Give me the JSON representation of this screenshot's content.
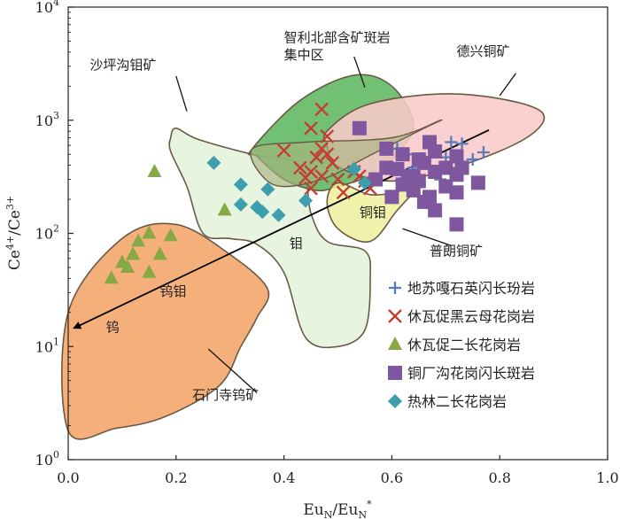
{
  "chart_data": {
    "type": "scatter",
    "title": "",
    "xlabel": {
      "main": "Eu",
      "sub1": "N",
      "mid": "/Eu",
      "sub2": "N",
      "sup": "*"
    },
    "ylabel": {
      "main": "Ce",
      "sup1": "4+",
      "mid": "/Ce",
      "sup2": "3+"
    },
    "xlim": [
      0,
      1
    ],
    "ylim": [
      1,
      10000
    ],
    "yscale": "log",
    "x_ticks": [
      "0.0",
      "0.2",
      "0.4",
      "0.6",
      "0.8",
      "1.0"
    ],
    "y_ticks": [
      {
        "base": "10",
        "exp": "0"
      },
      {
        "base": "10",
        "exp": "1"
      },
      {
        "base": "10",
        "exp": "2"
      },
      {
        "base": "10",
        "exp": "3"
      },
      {
        "base": "10",
        "exp": "4"
      }
    ],
    "regions": [
      {
        "name": "石门寺钨矿",
        "color": "#f4a468",
        "points": [
          [
            0.0,
            1.8
          ],
          [
            0.0,
            20
          ],
          [
            0.1,
            90
          ],
          [
            0.2,
            120
          ],
          [
            0.3,
            65
          ],
          [
            0.37,
            32
          ],
          [
            0.35,
            18
          ],
          [
            0.32,
            10
          ],
          [
            0.28,
            4.5
          ],
          [
            0.18,
            2.4
          ],
          [
            0.09,
            1.9
          ]
        ]
      },
      {
        "name": "沙坪沟钼矿",
        "color": "#e4f2dc",
        "points": [
          [
            0.19,
            700
          ],
          [
            0.2,
            850
          ],
          [
            0.24,
            680
          ],
          [
            0.34,
            500
          ],
          [
            0.43,
            400
          ],
          [
            0.45,
            150
          ],
          [
            0.48,
            85
          ],
          [
            0.55,
            70
          ],
          [
            0.56,
            40
          ],
          [
            0.55,
            14
          ],
          [
            0.5,
            10
          ],
          [
            0.44,
            12
          ],
          [
            0.4,
            45
          ],
          [
            0.35,
            80
          ],
          [
            0.3,
            90
          ],
          [
            0.25,
            100
          ],
          [
            0.22,
            260
          ],
          [
            0.19,
            530
          ]
        ]
      },
      {
        "name": "智利北部含矿斑岩集中区",
        "color": "#5fb760",
        "points": [
          [
            0.34,
            550
          ],
          [
            0.43,
            1500
          ],
          [
            0.53,
            2500
          ],
          [
            0.6,
            2000
          ],
          [
            0.64,
            900
          ],
          [
            0.6,
            450
          ],
          [
            0.55,
            310
          ],
          [
            0.5,
            260
          ],
          [
            0.46,
            240
          ],
          [
            0.4,
            300
          ],
          [
            0.35,
            480
          ]
        ]
      },
      {
        "name": "德兴铜矿",
        "color": "#f9c9c9",
        "points": [
          [
            0.48,
            800
          ],
          [
            0.55,
            1350
          ],
          [
            0.68,
            1700
          ],
          [
            0.8,
            1550
          ],
          [
            0.88,
            1150
          ],
          [
            0.85,
            700
          ],
          [
            0.73,
            400
          ],
          [
            0.6,
            290
          ],
          [
            0.5,
            390
          ],
          [
            0.48,
            600
          ]
        ]
      },
      {
        "name": "普朗铜矿",
        "color": "#eef0a0",
        "points": [
          [
            0.5,
            280
          ],
          [
            0.56,
            220
          ],
          [
            0.62,
            240
          ],
          [
            0.66,
            300
          ],
          [
            0.61,
            160
          ],
          [
            0.56,
            85
          ],
          [
            0.5,
            110
          ],
          [
            0.48,
            190
          ]
        ]
      }
    ],
    "region_outline_color": "#6a5a45",
    "overlap_region": {
      "color": "#a8b480",
      "points": [
        [
          0.34,
          550
        ],
        [
          0.44,
          640
        ],
        [
          0.6,
          700
        ],
        [
          0.69,
          1000
        ],
        [
          0.66,
          850
        ],
        [
          0.56,
          490
        ],
        [
          0.47,
          300
        ],
        [
          0.38,
          270
        ]
      ]
    },
    "annotations": [
      {
        "text": "智利北部含矿斑岩",
        "x": 0.4,
        "y": 4900,
        "leader": [
          [
            0.53,
            3650
          ],
          [
            0.55,
            1950
          ]
        ]
      },
      {
        "text": "集中区",
        "x": 0.4,
        "y": 3450
      },
      {
        "text": "德兴铜矿",
        "x": 0.72,
        "y": 3700,
        "leader": [
          [
            0.83,
            2600
          ],
          [
            0.8,
            1650
          ]
        ]
      },
      {
        "text": "沙坪沟钼矿",
        "x": 0.04,
        "y": 2800,
        "leader": [
          [
            0.2,
            2450
          ],
          [
            0.22,
            1200
          ]
        ]
      },
      {
        "text": "钼",
        "x": 0.41,
        "y": 74
      },
      {
        "text": "铜钼",
        "x": 0.54,
        "y": 140
      },
      {
        "text": "普朗铜矿",
        "x": 0.67,
        "y": 64,
        "leader": [
          [
            0.71,
            78
          ],
          [
            0.62,
            110
          ]
        ]
      },
      {
        "text": "钨钼",
        "x": 0.17,
        "y": 28
      },
      {
        "text": "钨",
        "x": 0.07,
        "y": 13.5
      },
      {
        "text": "石门寺钨矿",
        "x": 0.23,
        "y": 3.4,
        "leader": [
          [
            0.35,
            3.9
          ],
          [
            0.26,
            9.5
          ]
        ]
      }
    ],
    "trend_arrow": {
      "from": [
        0.78,
        820
      ],
      "to": [
        0.01,
        14.5
      ],
      "color": "#000000"
    },
    "series": [
      {
        "name": "地苏嘎石英闪长玢岩",
        "marker": "plus",
        "color": "#5a7bb3",
        "points": [
          [
            0.61,
            560
          ],
          [
            0.63,
            500
          ],
          [
            0.66,
            430
          ],
          [
            0.7,
            470
          ],
          [
            0.71,
            640
          ],
          [
            0.73,
            620
          ],
          [
            0.75,
            450
          ],
          [
            0.77,
            520
          ],
          [
            0.69,
            300
          ],
          [
            0.64,
            380
          ]
        ]
      },
      {
        "name": "休瓦促黑云母花岗岩",
        "marker": "cross",
        "color": "#c53b32",
        "points": [
          [
            0.4,
            540
          ],
          [
            0.47,
            1250
          ],
          [
            0.45,
            850
          ],
          [
            0.48,
            720
          ],
          [
            0.47,
            560
          ],
          [
            0.48,
            500
          ],
          [
            0.46,
            470
          ],
          [
            0.49,
            420
          ],
          [
            0.43,
            380
          ],
          [
            0.45,
            350
          ],
          [
            0.44,
            310
          ],
          [
            0.47,
            320
          ],
          [
            0.5,
            300
          ],
          [
            0.45,
            250
          ],
          [
            0.53,
            350
          ],
          [
            0.54,
            320
          ],
          [
            0.55,
            290
          ],
          [
            0.51,
            230
          ],
          [
            0.56,
            250
          ]
        ]
      },
      {
        "name": "休瓦促二长花岗岩",
        "marker": "triangle",
        "color": "#86a845",
        "points": [
          [
            0.16,
            350
          ],
          [
            0.29,
            160
          ],
          [
            0.15,
            100
          ],
          [
            0.19,
            95
          ],
          [
            0.13,
            85
          ],
          [
            0.12,
            65
          ],
          [
            0.17,
            65
          ],
          [
            0.1,
            55
          ],
          [
            0.11,
            50
          ],
          [
            0.15,
            45
          ],
          [
            0.08,
            40
          ]
        ]
      },
      {
        "name": "铜厂沟花岗闪长斑岩",
        "marker": "square",
        "color": "#7e579f",
        "points": [
          [
            0.54,
            850
          ],
          [
            0.59,
            560
          ],
          [
            0.67,
            640
          ],
          [
            0.62,
            500
          ],
          [
            0.65,
            450
          ],
          [
            0.68,
            530
          ],
          [
            0.66,
            420
          ],
          [
            0.72,
            480
          ],
          [
            0.59,
            380
          ],
          [
            0.61,
            370
          ],
          [
            0.63,
            320
          ],
          [
            0.57,
            300
          ],
          [
            0.62,
            270
          ],
          [
            0.65,
            290
          ],
          [
            0.68,
            350
          ],
          [
            0.7,
            380
          ],
          [
            0.72,
            330
          ],
          [
            0.73,
            380
          ],
          [
            0.64,
            240
          ],
          [
            0.67,
            210
          ],
          [
            0.7,
            260
          ],
          [
            0.72,
            230
          ],
          [
            0.6,
            210
          ],
          [
            0.66,
            190
          ],
          [
            0.76,
            280
          ],
          [
            0.68,
            160
          ],
          [
            0.72,
            120
          ],
          [
            0.64,
            320
          ]
        ]
      },
      {
        "name": "热林二长花岗岩",
        "marker": "diamond",
        "color": "#3d9fae",
        "points": [
          [
            0.27,
            420
          ],
          [
            0.32,
            270
          ],
          [
            0.37,
            245
          ],
          [
            0.32,
            180
          ],
          [
            0.35,
            170
          ],
          [
            0.36,
            155
          ],
          [
            0.39,
            145
          ],
          [
            0.44,
            195
          ],
          [
            0.53,
            370
          ],
          [
            0.55,
            280
          ]
        ]
      }
    ],
    "legend_position": "lower-right"
  }
}
